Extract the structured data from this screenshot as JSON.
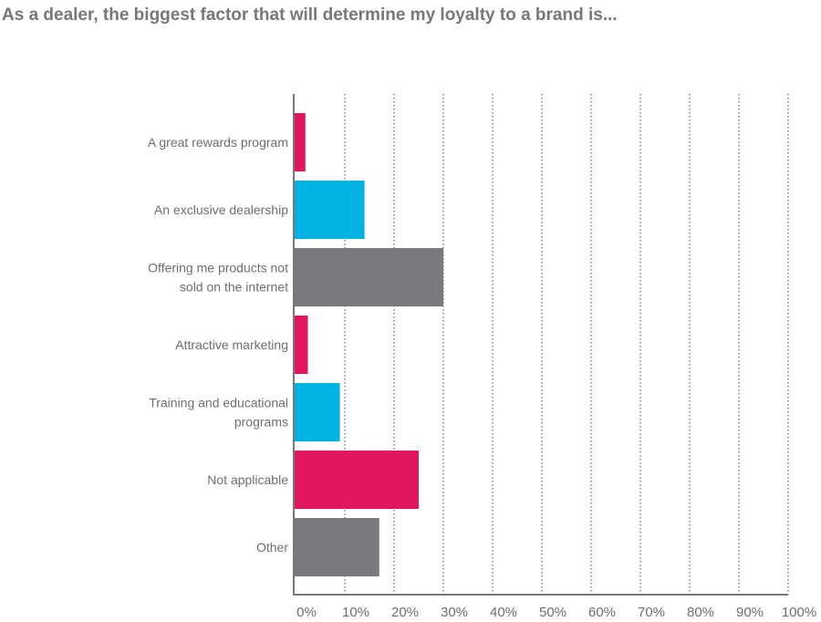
{
  "chart_data": {
    "type": "bar",
    "orientation": "horizontal",
    "title": "As a dealer, the biggest factor that will determine my loyalty to a brand is...",
    "categories": [
      [
        "A great rewards program"
      ],
      [
        "An exclusive dealership"
      ],
      [
        "Offering me products not",
        "sold on the internet"
      ],
      [
        "Attractive marketing"
      ],
      [
        "Training and educational",
        "programs"
      ],
      [
        "Not applicable"
      ],
      [
        "Other"
      ]
    ],
    "values": [
      2,
      14,
      30,
      2.5,
      9,
      25,
      17
    ],
    "colors": [
      "#e0165f",
      "#00b3e3",
      "#7a7a7c",
      "#e0165f",
      "#00b3e3",
      "#e0165f",
      "#7a7a7c"
    ],
    "xlim": [
      0,
      100
    ],
    "xticks": [
      "0%",
      "10%",
      "20%",
      "30%",
      "40%",
      "50%",
      "60%",
      "70%",
      "80%",
      "90%",
      "100%"
    ],
    "grid": "vertical dotted",
    "xlabel": "",
    "ylabel": ""
  }
}
